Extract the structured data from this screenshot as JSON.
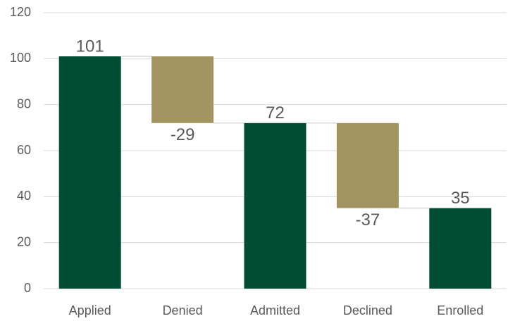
{
  "chart_data": {
    "type": "waterfall",
    "categories": [
      "Applied",
      "Denied",
      "Admitted",
      "Declined",
      "Enrolled"
    ],
    "values": [
      101,
      -29,
      72,
      -37,
      35
    ],
    "totals": [
      true,
      false,
      true,
      false,
      true
    ],
    "colors": [
      "#004d33",
      "#a39461",
      "#004d33",
      "#a39461",
      "#004d33"
    ],
    "ylim": [
      0,
      120
    ],
    "yticks": [
      0,
      20,
      40,
      60,
      80,
      100,
      120
    ],
    "grid": true
  }
}
